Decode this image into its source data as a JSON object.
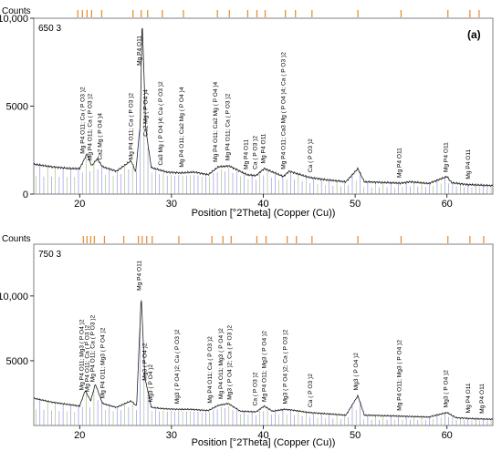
{
  "chart_data": [
    {
      "type": "line",
      "panel_label": "(a)",
      "sample_label": "650 3",
      "ylabel": "Counts",
      "xlabel": "Position [°2Theta] (Copper (Cu))",
      "xlim": [
        15,
        65
      ],
      "ylim": [
        0,
        10000
      ],
      "x_ticks": [
        20,
        30,
        40,
        50,
        60
      ],
      "y_ticks": [
        0,
        5000,
        10000
      ],
      "y_tick_labels": [
        "0",
        "5000",
        "10,000"
      ],
      "colors": {
        "trace": "#1f1f1f",
        "sticks_primary": "#6b5bd6",
        "sticks_secondary": "#6aa84f",
        "markers": "#e69138",
        "frame": "#7f7f7f"
      },
      "series": [
        {
          "x": [
            15,
            17,
            19,
            20,
            20.8,
            21.3,
            21.9,
            22.5,
            24,
            25.6,
            26.1,
            26.6,
            26.8,
            27.2,
            27.8,
            28.5,
            29.5,
            31,
            32.5,
            34,
            35.1,
            36.3,
            38.2,
            39.2,
            40.1,
            42.2,
            42.8,
            45,
            47,
            49,
            50.3,
            51,
            55,
            56,
            58,
            60,
            60.5,
            62,
            64,
            65
          ],
          "y": [
            1700,
            1550,
            1450,
            1450,
            2300,
            1600,
            2000,
            1550,
            1300,
            1900,
            1250,
            4000,
            10000,
            3700,
            1500,
            1400,
            1250,
            1200,
            1250,
            1100,
            1550,
            1600,
            1100,
            1050,
            1450,
            1000,
            1300,
            950,
            800,
            700,
            1450,
            700,
            620,
            700,
            600,
            1000,
            650,
            550,
            500,
            480
          ]
        }
      ],
      "peak_labels": [
        {
          "x": 20.5,
          "text": "Mg P4 O11; Ca ( P O3 )2"
        },
        {
          "x": 21.3,
          "text": "Mg P4 O11; Ca ( P O3 )2"
        },
        {
          "x": 22.4,
          "text": "Ca2 Mg ( P O4 )4"
        },
        {
          "x": 25.8,
          "text": "Mg P4 O11; Ca ( P O3 )2"
        },
        {
          "x": 26.7,
          "text": "Mg P4 O11"
        },
        {
          "x": 27.4,
          "text": "Ca2 Mg ( P O4 )4"
        },
        {
          "x": 29.0,
          "text": "Ca3 Mg ( P O4 )4; Ca ( P O3 )2"
        },
        {
          "x": 31.3,
          "text": "Mg P4 O11; Ca2 Mg ( P O4 )4"
        },
        {
          "x": 35.0,
          "text": "Mg P4 O11; Ca2 Mg ( P O4 )4"
        },
        {
          "x": 36.3,
          "text": "Mg P4 O11; Ca ( P O3 )2"
        },
        {
          "x": 38.3,
          "text": "Mg P4 O11"
        },
        {
          "x": 39.3,
          "text": "Ca ( P O3 )2"
        },
        {
          "x": 40.2,
          "text": "Mg P4 O11"
        },
        {
          "x": 42.4,
          "text": "Mg P4 O11; Ca3 Mg ( P O4 )4; Ca ( P O3 )2"
        },
        {
          "x": 45.3,
          "text": "Ca ( P O3 )2"
        },
        {
          "x": 55.0,
          "text": "Mg P4 O11"
        },
        {
          "x": 60.1,
          "text": "Mg P4 O11"
        },
        {
          "x": 62.5,
          "text": "Mg P4 O11"
        }
      ],
      "reference_markers_x": [
        19.8,
        20.3,
        20.8,
        21.3,
        22.4,
        25.8,
        26.7,
        27.4,
        29.0,
        31.3,
        35.0,
        36.3,
        38.3,
        39.3,
        40.2,
        42.4,
        43.5,
        45.3,
        50.3,
        55.0,
        60.1,
        62.5,
        63.5
      ]
    },
    {
      "type": "line",
      "sample_label": "750 3",
      "ylabel": "Counts",
      "xlabel": "Position [°2Theta] (Copper (Cu))",
      "xlim": [
        15,
        65
      ],
      "ylim": [
        0,
        14000
      ],
      "x_ticks": [
        20,
        30,
        40,
        50,
        60
      ],
      "y_ticks": [
        5000,
        10000
      ],
      "y_tick_labels": [
        "5000",
        "10,000"
      ],
      "colors": {
        "trace": "#1f1f1f",
        "sticks_primary": "#6b5bd6",
        "sticks_secondary": "#6aa84f",
        "markers": "#e69138",
        "frame": "#7f7f7f"
      },
      "series": [
        {
          "x": [
            15,
            17,
            19,
            20,
            20.6,
            21.2,
            21.7,
            22.5,
            24,
            25.6,
            26.2,
            26.7,
            27.1,
            27.8,
            29,
            30.5,
            32,
            34,
            35.1,
            36.2,
            37.5,
            39.2,
            40.1,
            41,
            42.3,
            43,
            45,
            47,
            49,
            50.3,
            51,
            55,
            58,
            60,
            61,
            63,
            65
          ],
          "y": [
            2100,
            1800,
            1600,
            1500,
            2700,
            1900,
            3200,
            1700,
            1400,
            1900,
            1500,
            10000,
            3700,
            1400,
            1300,
            1250,
            1250,
            1150,
            1550,
            1700,
            1100,
            1050,
            1500,
            1100,
            1250,
            1200,
            1000,
            900,
            800,
            2300,
            800,
            720,
            650,
            1000,
            600,
            520,
            480
          ]
        }
      ],
      "peak_labels": [
        {
          "x": 20.4,
          "text": "Mg P4 O11; Mg3 ( P O4 )2"
        },
        {
          "x": 21.0,
          "text": "Mg P4 O11; Ca ( P O3 )2"
        },
        {
          "x": 21.6,
          "text": "Mg P4 O11; Ca ( P O3 )2"
        },
        {
          "x": 22.7,
          "text": "Mg P4 O11; Mg3 ( P O4 )2"
        },
        {
          "x": 26.7,
          "text": "Mg P4 O11"
        },
        {
          "x": 27.3,
          "text": "Mg3 ( P O4 )2"
        },
        {
          "x": 27.9,
          "text": "Mg3 ( P O4 )2"
        },
        {
          "x": 30.8,
          "text": "Mg3 ( P O4 )2; Ca ( P O3 )2"
        },
        {
          "x": 34.4,
          "text": "Mg P4 O11; Ca ( P O3 )2"
        },
        {
          "x": 35.6,
          "text": "Mg P4 O11; Mg3 ( P O4 )2"
        },
        {
          "x": 36.5,
          "text": "Mg3 ( P O4 )2; Ca ( P O3 )2"
        },
        {
          "x": 39.3,
          "text": "Ca ( P O3 )2"
        },
        {
          "x": 40.3,
          "text": "Mg P4 O11; Mg3 ( P O4 )2"
        },
        {
          "x": 42.6,
          "text": "Mg3 ( P O4 )2; Ca ( P O3 )2"
        },
        {
          "x": 45.3,
          "text": "Ca ( P O3 )2"
        },
        {
          "x": 50.3,
          "text": "Mg3 ( P O4 )2"
        },
        {
          "x": 55.0,
          "text": "Mg P4 O11; Mg3 ( P O4 )2"
        },
        {
          "x": 60.1,
          "text": "Mg3 ( P O4 )2"
        },
        {
          "x": 62.5,
          "text": "Mg P4 O11"
        },
        {
          "x": 64.0,
          "text": "Mg P4 O11"
        }
      ],
      "reference_markers_x": [
        20.4,
        20.8,
        21.2,
        21.6,
        22.7,
        24.8,
        26.4,
        26.8,
        27.3,
        27.9,
        30.8,
        34.4,
        35.6,
        36.5,
        39.3,
        40.3,
        42.6,
        43.6,
        45.3,
        50.3,
        55.0,
        60.1,
        62.5,
        64.0
      ]
    }
  ]
}
